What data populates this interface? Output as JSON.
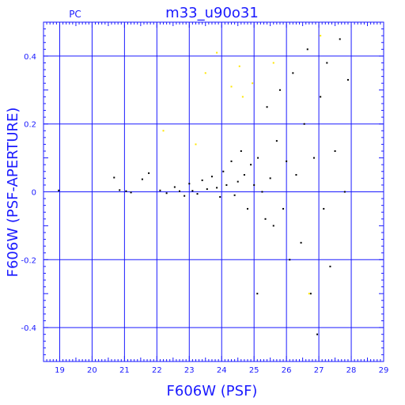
{
  "header": {
    "label_left": "PC",
    "title": "m33_u90o31"
  },
  "colors": {
    "axis": "#1a1aff",
    "grid": "#1a1aff",
    "points": "#000000",
    "highlight_points": "#ffe600"
  },
  "chart_data": {
    "type": "scatter",
    "title": "m33_u90o31",
    "xlabel": "F606W (PSF)",
    "ylabel": "F606W (PSF-APERTURE)",
    "xlim": [
      18.5,
      29
    ],
    "ylim": [
      -0.5,
      0.5
    ],
    "x_ticks": [
      19,
      20,
      21,
      22,
      23,
      24,
      25,
      26,
      27,
      28,
      29
    ],
    "y_ticks": [
      -0.4,
      -0.2,
      0,
      0.2,
      0.4
    ],
    "x_tick_labels": [
      "19",
      "20",
      "21",
      "22",
      "23",
      "24",
      "25",
      "26",
      "27",
      "28",
      "29"
    ],
    "y_tick_labels": [
      "-0.4",
      "-0.2",
      "0",
      "0.2",
      "0.4"
    ],
    "grid": true,
    "series": [
      {
        "values": [
          [
            18.97,
            0.004
          ],
          [
            20.68,
            0.042
          ],
          [
            20.85,
            0.005
          ],
          [
            21.05,
            0.002
          ],
          [
            21.2,
            -0.002
          ],
          [
            21.55,
            0.037
          ],
          [
            21.75,
            0.055
          ],
          [
            22.1,
            0.004
          ],
          [
            22.3,
            -0.004
          ],
          [
            22.55,
            0.014
          ],
          [
            22.7,
            0.002
          ],
          [
            22.85,
            -0.012
          ],
          [
            23.0,
            0.024
          ],
          [
            23.1,
            0.003
          ],
          [
            23.25,
            -0.006
          ],
          [
            23.4,
            0.034
          ],
          [
            23.55,
            0.008
          ],
          [
            23.7,
            0.045
          ],
          [
            23.85,
            0.012
          ],
          [
            23.95,
            -0.015
          ],
          [
            24.05,
            0.06
          ],
          [
            24.15,
            0.02
          ],
          [
            24.3,
            0.09
          ],
          [
            24.4,
            -0.01
          ],
          [
            24.5,
            0.03
          ],
          [
            24.6,
            0.12
          ],
          [
            24.7,
            0.05
          ],
          [
            24.8,
            -0.05
          ],
          [
            24.9,
            0.08
          ],
          [
            25.0,
            0.02
          ],
          [
            25.1,
            -0.3
          ],
          [
            25.12,
            0.1
          ],
          [
            25.25,
            0.0
          ],
          [
            25.35,
            -0.08
          ],
          [
            25.4,
            0.25
          ],
          [
            25.5,
            0.04
          ],
          [
            25.6,
            -0.1
          ],
          [
            25.7,
            0.15
          ],
          [
            25.8,
            0.3
          ],
          [
            25.9,
            -0.05
          ],
          [
            26.0,
            0.09
          ],
          [
            26.1,
            -0.2
          ],
          [
            26.2,
            0.35
          ],
          [
            26.3,
            0.05
          ],
          [
            26.45,
            -0.15
          ],
          [
            26.55,
            0.2
          ],
          [
            26.65,
            0.42
          ],
          [
            26.75,
            -0.3
          ],
          [
            26.85,
            0.1
          ],
          [
            26.95,
            -0.42
          ],
          [
            27.05,
            0.28
          ],
          [
            27.15,
            -0.05
          ],
          [
            27.25,
            0.38
          ],
          [
            27.35,
            -0.22
          ],
          [
            27.5,
            0.12
          ],
          [
            27.65,
            0.45
          ],
          [
            27.8,
            0.0
          ],
          [
            27.9,
            0.33
          ]
        ]
      },
      {
        "values": [
          [
            22.2,
            0.18
          ],
          [
            23.2,
            0.14
          ],
          [
            23.5,
            0.35
          ],
          [
            23.85,
            0.41
          ],
          [
            24.3,
            0.31
          ],
          [
            24.55,
            0.37
          ],
          [
            24.65,
            0.28
          ],
          [
            24.95,
            0.32
          ],
          [
            25.6,
            0.38
          ],
          [
            26.7,
            -0.3
          ],
          [
            27.05,
            0.46
          ]
        ]
      }
    ]
  }
}
